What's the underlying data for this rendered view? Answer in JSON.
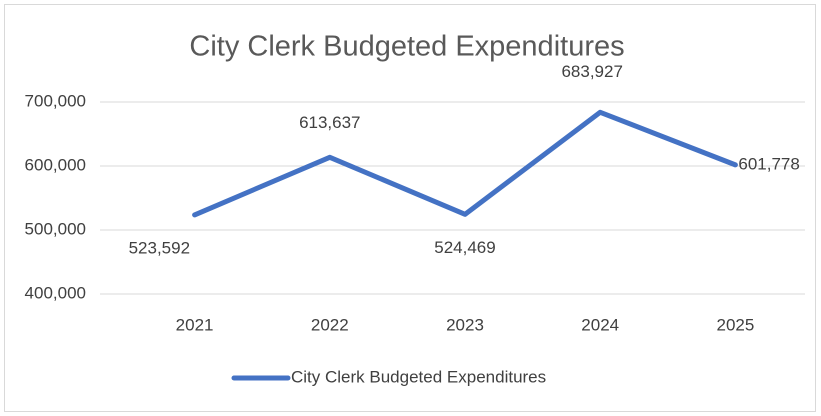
{
  "chart_data": {
    "type": "line",
    "title": "City Clerk Budgeted Expenditures",
    "categories": [
      "2021",
      "2022",
      "2023",
      "2024",
      "2025"
    ],
    "series": [
      {
        "name": "City Clerk Budgeted Expenditures",
        "color": "#4472c4",
        "values": [
          523592,
          613637,
          524469,
          683927,
          601778
        ],
        "value_labels": [
          "523,592",
          "613,637",
          "524,469",
          "683,927",
          "601,778"
        ]
      }
    ],
    "ylim": [
      400000,
      700000
    ],
    "yticks": [
      {
        "value": 400000,
        "label": "400,000"
      },
      {
        "value": 500000,
        "label": "500,000"
      },
      {
        "value": 600000,
        "label": "600,000"
      },
      {
        "value": 700000,
        "label": "700,000"
      }
    ],
    "grid": true,
    "legend": "bottom"
  }
}
